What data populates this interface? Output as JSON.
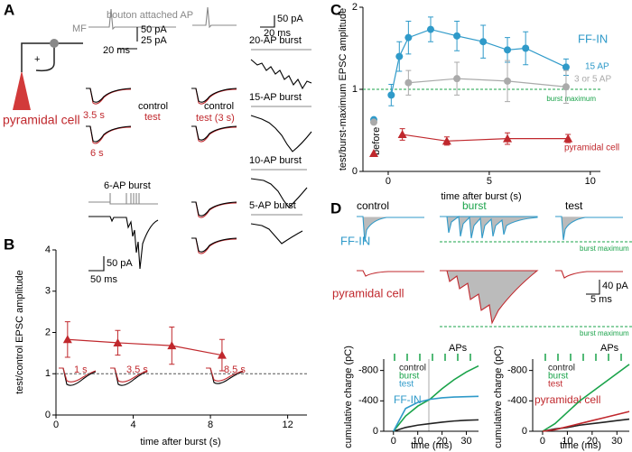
{
  "panels": {
    "A": {
      "label": "A",
      "mf": "MF",
      "ap": "bouton attached AP",
      "s1": "50 pA",
      "s2": "25 pA",
      "s3": "20 ms",
      "t1": "3.5 s",
      "control": "control",
      "test": "test",
      "t2": "6 s",
      "cell": "pyramidal cell",
      "plus": "+",
      "burst6": "6-AP burst",
      "s4": "50 pA",
      "s5": "50 ms",
      "control2": "control",
      "test2": "test (3 s)",
      "b20": "20-AP burst",
      "b15": "15-AP burst",
      "b10": "10-AP burst",
      "b5": "5-AP burst",
      "s6": "50 pA",
      "s7": "20 ms"
    },
    "B": {
      "label": "B",
      "insets": [
        "1 s",
        "3.5 s",
        "8.5 s"
      ]
    },
    "C": {
      "label": "C",
      "ffin": "FF-IN",
      "before": "before"
    },
    "D": {
      "label": "D",
      "control": "control",
      "burst": "burst",
      "test": "test",
      "ffin": "FF-IN",
      "bm1": "burst maximum",
      "bm2": "burst maximum",
      "cell": "pyramidal cell",
      "s1": "40 pA",
      "s2": "5 ms",
      "aps1": "APs",
      "aps2": "APs"
    }
  },
  "chart_data": [
    {
      "type": "line",
      "x": [
        0.6,
        3.2,
        6.0,
        8.6
      ],
      "xlim": [
        0,
        13
      ],
      "xticks": [
        0,
        4,
        8,
        12
      ],
      "ylim": [
        0,
        4
      ],
      "yticks": [
        0,
        1,
        2,
        3,
        4
      ],
      "xlabel": "time after burst (s)",
      "ylabel": "test/control EPSC amplitude",
      "reference_line": 1,
      "reference_color": "#555",
      "series": [
        {
          "color": "#c0282d",
          "marker": "triangle",
          "values": [
            1.83,
            1.75,
            1.68,
            1.45
          ],
          "errors": [
            0.43,
            0.3,
            0.45,
            0.38
          ]
        }
      ]
    },
    {
      "type": "line",
      "xlim": [
        -1.25,
        10.5
      ],
      "xticks": [
        0,
        5,
        10
      ],
      "ylim": [
        0,
        2
      ],
      "yticks": [
        0,
        1,
        2
      ],
      "xlabel": "time after burst (s)",
      "ylabel": "test/burst-maximum EPSC amplitude",
      "reference_line": 1,
      "reference_color": "#1aa34a",
      "reference_label": "burst maximum",
      "series": [
        {
          "name": "15 AP",
          "color": "#2f9ac9",
          "marker": "circle",
          "before": 0.63,
          "x": [
            0.15,
            0.55,
            1.0,
            2.1,
            3.4,
            4.7,
            5.9,
            6.8,
            8.8
          ],
          "values": [
            0.93,
            1.4,
            1.63,
            1.73,
            1.65,
            1.58,
            1.48,
            1.5,
            1.27
          ],
          "errors": [
            0.13,
            0.18,
            0.2,
            0.15,
            0.18,
            0.2,
            0.15,
            0.2,
            0.1
          ]
        },
        {
          "name": "3 or 5 AP",
          "color": "#aaaaaa",
          "marker": "circle",
          "before": 0.6,
          "x": [
            1.0,
            3.4,
            5.9,
            8.8
          ],
          "values": [
            1.08,
            1.13,
            1.1,
            1.03
          ],
          "errors": [
            0.15,
            0.2,
            0.25,
            0.2
          ]
        },
        {
          "name": "pyramidal cell",
          "color": "#c0282d",
          "marker": "triangle",
          "before": 0.22,
          "x": [
            0.7,
            2.9,
            5.9,
            8.9
          ],
          "values": [
            0.45,
            0.37,
            0.4,
            0.4
          ],
          "errors": [
            0.07,
            0.05,
            0.07,
            0.05
          ]
        }
      ]
    },
    {
      "type": "line",
      "label": "FF-IN",
      "label_color": "#2f9ac9",
      "x": [
        0,
        5,
        10,
        15,
        20,
        25,
        30,
        35
      ],
      "xlim": [
        -4,
        35
      ],
      "xticks": [
        0,
        10,
        20,
        30
      ],
      "ylim": [
        0,
        -950
      ],
      "yticks": [
        0,
        -400,
        -800
      ],
      "xlabel": "time (ms)",
      "ylabel": "cumulative charge (pC)",
      "series": [
        {
          "name": "control",
          "color": "#222222",
          "values": [
            0,
            -50,
            -80,
            -100,
            -120,
            -135,
            -145,
            -150
          ]
        },
        {
          "name": "burst",
          "color": "#1aa34a",
          "values": [
            0,
            -200,
            -330,
            -420,
            -560,
            -680,
            -780,
            -860
          ]
        },
        {
          "name": "test",
          "color": "#2f9ac9",
          "values": [
            0,
            -300,
            -380,
            -420,
            -440,
            -450,
            -455,
            -460
          ]
        }
      ]
    },
    {
      "type": "line",
      "label": "pyramidal cell",
      "label_color": "#c0282d",
      "x": [
        0,
        5,
        10,
        15,
        20,
        25,
        30,
        35
      ],
      "xlim": [
        -4,
        35
      ],
      "xticks": [
        0,
        10,
        20,
        30
      ],
      "ylim": [
        0,
        -950
      ],
      "yticks": [
        0,
        -400,
        -800
      ],
      "xlabel": "time (ms)",
      "ylabel": "cumulative charge (pC)",
      "series": [
        {
          "name": "control",
          "color": "#222222",
          "values": [
            0,
            -30,
            -50,
            -80,
            -100,
            -120,
            -140,
            -160
          ]
        },
        {
          "name": "burst",
          "color": "#1aa34a",
          "values": [
            0,
            -100,
            -250,
            -400,
            -520,
            -640,
            -760,
            -880
          ]
        },
        {
          "name": "test",
          "color": "#c0282d",
          "values": [
            0,
            -20,
            -60,
            -100,
            -140,
            -180,
            -220,
            -260
          ]
        }
      ]
    }
  ]
}
